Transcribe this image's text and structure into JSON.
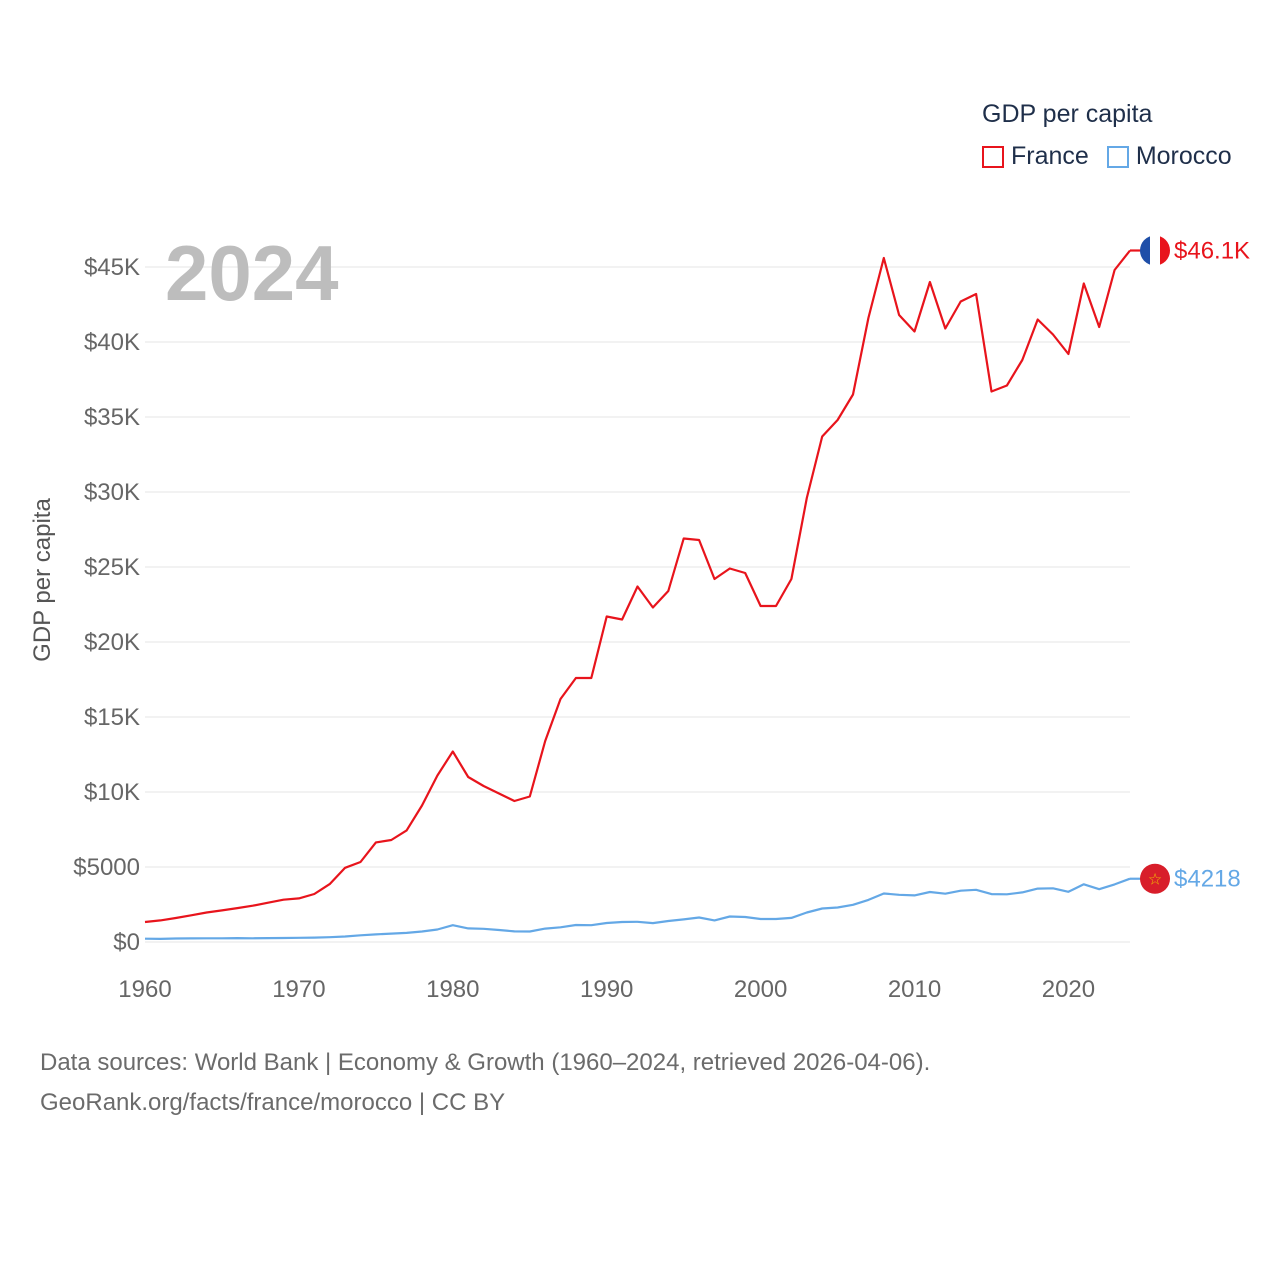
{
  "legend": {
    "title": "GDP per capita",
    "items": [
      {
        "name": "France",
        "color": "#e8141c"
      },
      {
        "name": "Morocco",
        "color": "#64a8e6"
      }
    ]
  },
  "footer": {
    "line1": "Data sources: World Bank | Economy & Growth (1960–2024, retrieved 2026-04-06).",
    "line2": "GeoRank.org/facts/france/morocco | CC BY"
  },
  "chart_data": {
    "type": "line",
    "title": "GDP per capita",
    "year_label": "2024",
    "ylabel": "GDP per capita",
    "xlabel": "",
    "xlim": [
      1960,
      2024
    ],
    "ylim": [
      0,
      47000
    ],
    "yticks": [
      0,
      5000,
      10000,
      15000,
      20000,
      25000,
      30000,
      35000,
      40000,
      45000
    ],
    "ytick_labels": [
      "$0",
      "$5000",
      "$10K",
      "$15K",
      "$20K",
      "$25K",
      "$30K",
      "$35K",
      "$40K",
      "$45K"
    ],
    "xticks": [
      1960,
      1970,
      1980,
      1990,
      2000,
      2010,
      2020
    ],
    "xtick_labels": [
      "1960",
      "1970",
      "1980",
      "1990",
      "2000",
      "2010",
      "2020"
    ],
    "grid": true,
    "x": [
      1960,
      1961,
      1962,
      1963,
      1964,
      1965,
      1966,
      1967,
      1968,
      1969,
      1970,
      1971,
      1972,
      1973,
      1974,
      1975,
      1976,
      1977,
      1978,
      1979,
      1980,
      1981,
      1982,
      1983,
      1984,
      1985,
      1986,
      1987,
      1988,
      1989,
      1990,
      1991,
      1992,
      1993,
      1994,
      1995,
      1996,
      1997,
      1998,
      1999,
      2000,
      2001,
      2002,
      2003,
      2004,
      2005,
      2006,
      2007,
      2008,
      2009,
      2010,
      2011,
      2012,
      2013,
      2014,
      2015,
      2016,
      2017,
      2018,
      2019,
      2020,
      2021,
      2022,
      2023,
      2024
    ],
    "series": [
      {
        "name": "France",
        "color": "#e8141c",
        "end_label": "$46.1K",
        "values": [
          1330,
          1440,
          1600,
          1780,
          1970,
          2110,
          2260,
          2420,
          2620,
          2820,
          2910,
          3200,
          3860,
          4950,
          5330,
          6640,
          6800,
          7440,
          9100,
          11100,
          12700,
          11000,
          10400,
          9900,
          9400,
          9700,
          13400,
          16200,
          17600,
          17600,
          21700,
          21500,
          23700,
          22300,
          23400,
          26900,
          26800,
          24200,
          24900,
          24600,
          22400,
          22400,
          24200,
          29600,
          33700,
          34800,
          36500,
          41600,
          45600,
          41800,
          40700,
          44000,
          40900,
          42700,
          43200,
          36700,
          37100,
          38800,
          41500,
          40500,
          39200,
          43900,
          41000,
          44800,
          46100
        ]
      },
      {
        "name": "Morocco",
        "color": "#64a8e6",
        "end_label": "$4218",
        "values": [
          220,
          210,
          230,
          240,
          250,
          250,
          260,
          250,
          260,
          270,
          280,
          290,
          320,
          370,
          450,
          510,
          560,
          610,
          700,
          830,
          1120,
          910,
          880,
          800,
          710,
          700,
          890,
          980,
          1130,
          1120,
          1270,
          1330,
          1350,
          1260,
          1400,
          1510,
          1630,
          1440,
          1700,
          1670,
          1530,
          1530,
          1610,
          1970,
          2230,
          2300,
          2480,
          2810,
          3230,
          3150,
          3110,
          3330,
          3220,
          3420,
          3480,
          3190,
          3180,
          3310,
          3560,
          3580,
          3350,
          3850,
          3520,
          3840,
          4218
        ]
      }
    ]
  }
}
